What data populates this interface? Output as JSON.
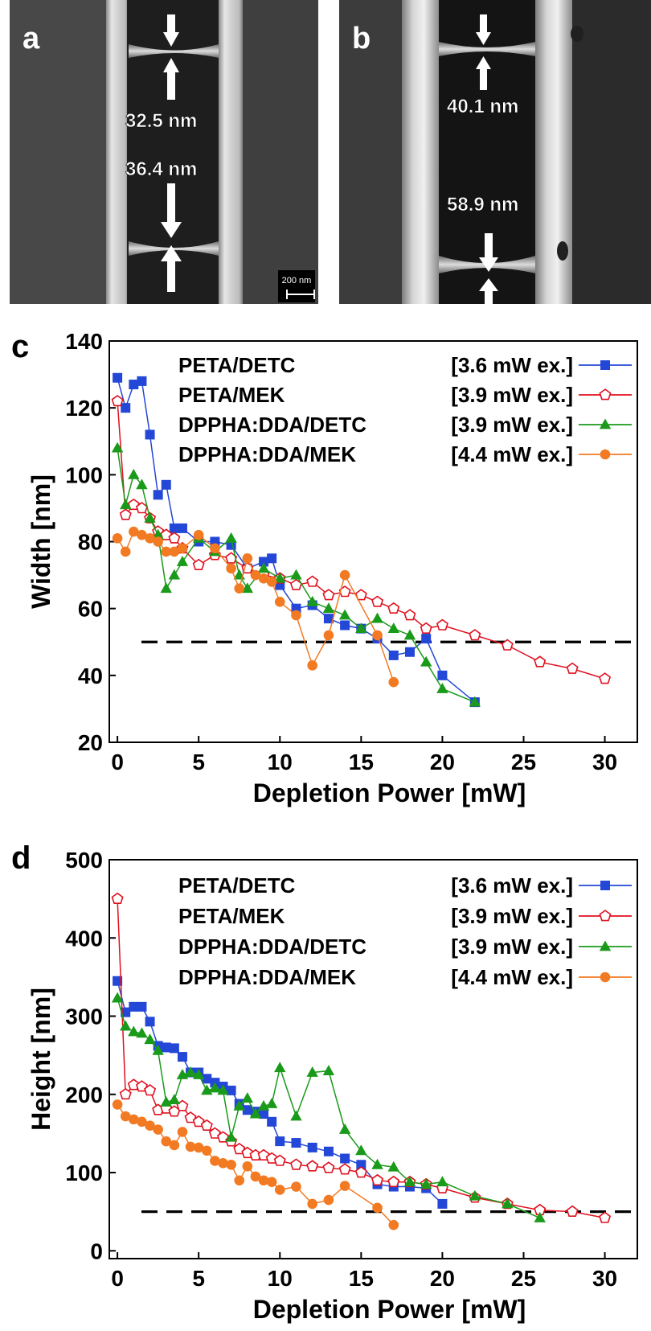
{
  "sem": {
    "a": {
      "label": "a",
      "measurement_top": "32.5 nm",
      "measurement_bottom": "36.4 nm",
      "scalebar_label": "200 nm"
    },
    "b": {
      "label": "b",
      "measurement_top": "40.1 nm",
      "measurement_bottom": "58.9 nm"
    }
  },
  "colors": {
    "blue": "#2347d6",
    "red": "#e0101e",
    "green": "#1a9a1a",
    "orange": "#f27a22"
  },
  "chart_data": [
    {
      "panel_label": "c",
      "type": "line",
      "xlabel": "Depletion Power [mW]",
      "ylabel": "Width [nm]",
      "xlim": [
        -0.5,
        32
      ],
      "ylim": [
        20,
        140
      ],
      "xticks": [
        0,
        5,
        10,
        15,
        20,
        25,
        30
      ],
      "yticks": [
        20,
        40,
        60,
        80,
        100,
        120,
        140
      ],
      "reference_line_y": 50,
      "legend_placement": "top-right",
      "series": [
        {
          "name": "PETA/DETC",
          "condition": "[3.6 mW ex.]",
          "marker": "square",
          "x": [
            0,
            0.5,
            1,
            1.5,
            2,
            2.5,
            3,
            3.5,
            4,
            5,
            6,
            7,
            8,
            9,
            9.5,
            10,
            11,
            12,
            13,
            14,
            15,
            16,
            17,
            18,
            19,
            20,
            22
          ],
          "y": [
            129,
            120,
            127,
            128,
            112,
            94,
            97,
            84,
            84,
            80,
            80,
            79,
            72,
            74,
            75,
            67,
            60,
            61,
            57,
            55,
            54,
            51,
            46,
            47,
            51,
            40,
            32
          ]
        },
        {
          "name": "PETA/MEK",
          "condition": "[3.9 mW ex.]",
          "marker": "pentagon-open",
          "x": [
            0,
            0.5,
            1,
            1.5,
            2,
            2.5,
            3,
            3.5,
            4,
            5,
            6,
            7,
            8,
            9,
            10,
            11,
            12,
            13,
            14,
            15,
            16,
            17,
            18,
            19,
            20,
            22,
            24,
            26,
            28,
            30
          ],
          "y": [
            122,
            88,
            91,
            90,
            87,
            83,
            82,
            81,
            78,
            73,
            76,
            75,
            72,
            70,
            69,
            67,
            68,
            64,
            65,
            64,
            62,
            60,
            58,
            54,
            55,
            52,
            49,
            44,
            42,
            39
          ]
        },
        {
          "name": "DPPHA:DDA/DETC",
          "condition": "[3.9 mW ex.]",
          "marker": "triangle",
          "x": [
            0,
            0.5,
            1,
            1.5,
            2,
            2.5,
            3,
            3.5,
            4,
            5,
            6,
            7,
            7.5,
            8,
            9,
            10,
            11,
            12,
            13,
            14,
            15,
            16,
            17,
            18,
            19,
            20,
            22
          ],
          "y": [
            108,
            91,
            100,
            97,
            87,
            82,
            66,
            70,
            74,
            81,
            77,
            81,
            70,
            66,
            72,
            69,
            70,
            62,
            60,
            58,
            54,
            57,
            54,
            52,
            44,
            36,
            32
          ]
        },
        {
          "name": "DPPHA:DDA/MEK",
          "condition": "[4.4 mW ex.]",
          "marker": "circle",
          "x": [
            0,
            0.5,
            1,
            1.5,
            2,
            2.5,
            3,
            3.5,
            4,
            5,
            6,
            7,
            7.5,
            8,
            8.5,
            9,
            9.5,
            10,
            11,
            12,
            13,
            14,
            16,
            17
          ],
          "y": [
            81,
            77,
            83,
            82,
            81,
            80,
            77,
            77,
            78,
            82,
            78,
            72,
            66,
            75,
            70,
            69,
            68,
            62,
            58,
            43,
            52,
            70,
            52,
            38
          ]
        }
      ]
    },
    {
      "panel_label": "d",
      "type": "line",
      "xlabel": "Depletion Power [mW]",
      "ylabel": "Height [nm]",
      "xlim": [
        -0.5,
        32
      ],
      "ylim": [
        -10,
        500
      ],
      "xticks": [
        0,
        5,
        10,
        15,
        20,
        25,
        30
      ],
      "yticks": [
        0,
        100,
        200,
        300,
        400,
        500
      ],
      "reference_line_y": 50,
      "legend_placement": "top-right",
      "series": [
        {
          "name": "PETA/DETC",
          "condition": "[3.6 mW ex.]",
          "marker": "square",
          "x": [
            0,
            0.5,
            1,
            1.5,
            2,
            2.5,
            3,
            3.5,
            4,
            4.5,
            5,
            5.5,
            6,
            6.5,
            7,
            7.5,
            8,
            8.5,
            9,
            9.5,
            10,
            11,
            12,
            13,
            14,
            15,
            16,
            17,
            18,
            19,
            20
          ],
          "y": [
            345,
            305,
            312,
            312,
            293,
            262,
            260,
            259,
            248,
            228,
            228,
            220,
            215,
            210,
            205,
            188,
            180,
            178,
            175,
            165,
            140,
            138,
            132,
            127,
            118,
            110,
            85,
            82,
            82,
            80,
            60
          ]
        },
        {
          "name": "PETA/MEK",
          "condition": "[3.9 mW ex.]",
          "marker": "pentagon-open",
          "x": [
            0,
            0.5,
            1,
            1.5,
            2,
            2.5,
            3,
            3.5,
            4,
            4.5,
            5,
            5.5,
            6,
            6.5,
            7,
            7.5,
            8,
            8.5,
            9,
            9.5,
            10,
            11,
            12,
            13,
            14,
            15,
            16,
            17,
            18,
            19,
            20,
            22,
            24,
            26,
            28,
            30
          ],
          "y": [
            450,
            200,
            212,
            210,
            205,
            180,
            182,
            178,
            185,
            170,
            165,
            160,
            150,
            145,
            140,
            130,
            125,
            122,
            122,
            118,
            115,
            110,
            108,
            106,
            104,
            100,
            90,
            88,
            88,
            85,
            80,
            68,
            60,
            52,
            50,
            42
          ]
        },
        {
          "name": "DPPHA:DDA/DETC",
          "condition": "[3.9 mW ex.]",
          "marker": "triangle",
          "x": [
            0,
            0.5,
            1,
            1.5,
            2,
            2.5,
            3,
            3.5,
            4,
            4.5,
            5,
            5.5,
            6,
            6.5,
            7,
            7.5,
            8,
            8.5,
            9,
            9.5,
            10,
            11,
            12,
            13,
            14,
            15,
            16,
            17,
            18,
            19,
            20,
            22,
            24,
            26
          ],
          "y": [
            323,
            287,
            280,
            278,
            270,
            256,
            190,
            193,
            225,
            228,
            225,
            205,
            208,
            205,
            145,
            185,
            195,
            175,
            185,
            188,
            234,
            172,
            228,
            230,
            155,
            128,
            110,
            107,
            88,
            85,
            88,
            70,
            60,
            42
          ]
        },
        {
          "name": "DPPHA:DDA/MEK",
          "condition": "[4.4 mW ex.]",
          "marker": "circle",
          "x": [
            0,
            0.5,
            1,
            1.5,
            2,
            2.5,
            3,
            3.5,
            4,
            4.5,
            5,
            5.5,
            6,
            6.5,
            7,
            7.5,
            8,
            8.5,
            9,
            9.5,
            10,
            11,
            12,
            13,
            14,
            16,
            17
          ],
          "y": [
            187,
            172,
            168,
            165,
            160,
            155,
            140,
            135,
            152,
            133,
            132,
            128,
            115,
            112,
            110,
            90,
            108,
            95,
            90,
            88,
            78,
            82,
            60,
            65,
            83,
            55,
            33
          ]
        }
      ]
    }
  ]
}
